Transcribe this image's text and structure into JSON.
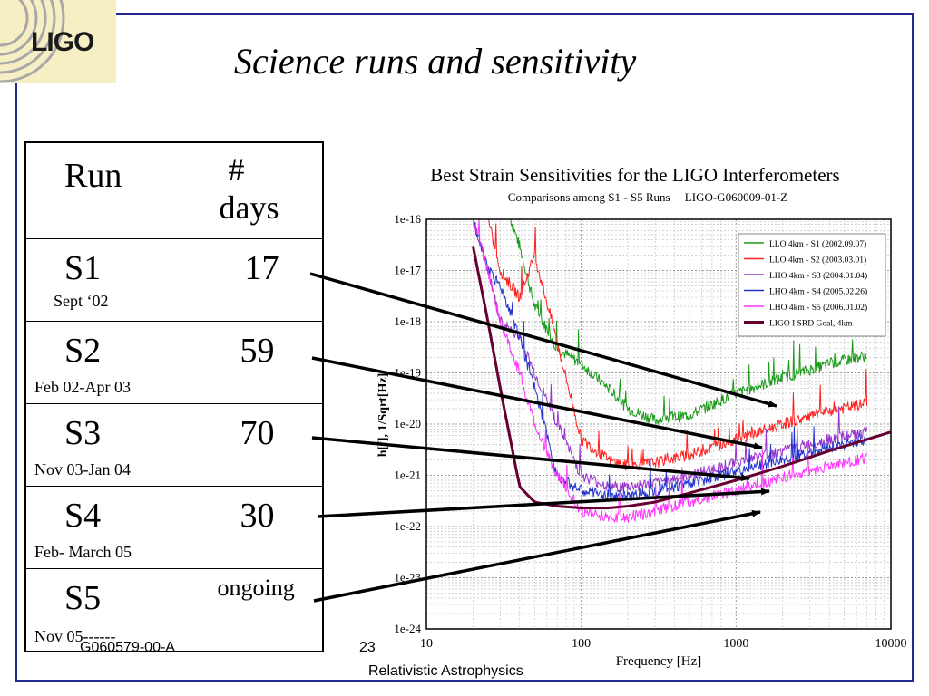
{
  "slide": {
    "logo_text": "LIGO",
    "title": "Science runs and sensitivity",
    "footer_left": "G060579-00-A",
    "page_number": "23",
    "footer_center": "Relativistic Astrophysics",
    "colors": {
      "frame": "#1f2a8c",
      "logo_bg": "#f7efc4"
    }
  },
  "table": {
    "header_run": "Run",
    "header_days_line1": "#",
    "header_days_line2": "days",
    "rows": [
      {
        "run": "S1",
        "dates": "Sept ‘02",
        "days": "17"
      },
      {
        "run": "S2",
        "dates": "Feb 02-Apr 03",
        "days": "59"
      },
      {
        "run": "S3",
        "dates": "Nov 03-Jan 04",
        "days": "70"
      },
      {
        "run": "S4",
        "dates": "Feb- March 05",
        "days": "30"
      },
      {
        "run": "S5",
        "dates": "Nov 05------",
        "days": "ongoing"
      }
    ]
  },
  "chart_data": {
    "type": "line",
    "title": "Best Strain Sensitivities for the LIGO Interferometers",
    "subtitle": "Comparisons among S1 - S5 Runs     LIGO-G060009-01-Z",
    "xlabel": "Frequency [Hz]",
    "ylabel": "h[f], 1/Sqrt[Hz]",
    "x_scale": "log",
    "y_scale": "log",
    "xlim": [
      10,
      10000
    ],
    "ylim": [
      1e-24,
      1e-16
    ],
    "x_ticks": [
      "10",
      "100",
      "1000",
      "10000"
    ],
    "y_ticks": [
      "1e-24",
      "1e-23",
      "1e-22",
      "1e-21",
      "1e-20",
      "1e-19",
      "1e-18",
      "1e-17",
      "1e-16"
    ],
    "grid": true,
    "legend_position": "top-right",
    "series": [
      {
        "name": "LLO 4km - S1 (2002.09.07)",
        "color": "#1a9a1a",
        "x": [
          35,
          40,
          50,
          70,
          100,
          150,
          200,
          300,
          500,
          1000,
          2000,
          4000,
          7000
        ],
        "y": [
          1e-16,
          3e-17,
          2e-18,
          3e-19,
          1.5e-19,
          5e-20,
          2e-20,
          1.2e-20,
          1.5e-20,
          4e-20,
          8e-20,
          1.5e-19,
          2.2e-19
        ]
      },
      {
        "name": "LLO 4km - S2 (2003.03.01)",
        "color": "#ff2020",
        "x": [
          25,
          30,
          40,
          50,
          70,
          100,
          150,
          200,
          300,
          500,
          1000,
          2000,
          4000,
          7000
        ],
        "y": [
          1e-16,
          1e-17,
          3e-18,
          2e-17,
          4e-19,
          5e-21,
          2e-21,
          1.5e-21,
          1.8e-21,
          2.5e-21,
          5e-21,
          1e-20,
          1.8e-20,
          2.5e-20
        ]
      },
      {
        "name": "LHO 4km - S3 (2004.01.04)",
        "color": "#9933cc",
        "x": [
          20,
          25,
          30,
          40,
          50,
          70,
          100,
          150,
          200,
          300,
          500,
          1000,
          2000,
          4000,
          7000
        ],
        "y": [
          1e-16,
          1e-17,
          1e-18,
          5e-19,
          1e-19,
          1e-20,
          1e-21,
          6e-22,
          6e-22,
          7e-22,
          1e-21,
          1.8e-21,
          3e-21,
          5e-21,
          7e-21
        ]
      },
      {
        "name": "LHO 4km - S4 (2005.02.26)",
        "color": "#2233cc",
        "x": [
          20,
          25,
          30,
          40,
          50,
          70,
          100,
          150,
          200,
          300,
          500,
          1000,
          2000,
          4000,
          7000
        ],
        "y": [
          1e-16,
          1e-17,
          5e-18,
          5e-19,
          5e-20,
          1e-21,
          5e-22,
          4e-22,
          4e-22,
          5e-22,
          7e-22,
          1.2e-21,
          2e-21,
          3.5e-21,
          5e-21
        ]
      },
      {
        "name": "LHO 4km - S5 (2006.01.02)",
        "color": "#ff33ff",
        "x": [
          20,
          25,
          30,
          40,
          50,
          70,
          100,
          150,
          200,
          300,
          500,
          1000,
          2000,
          4000,
          7000
        ],
        "y": [
          1e-16,
          1e-17,
          1e-18,
          1e-19,
          1e-20,
          1e-21,
          2e-22,
          1.5e-22,
          1.5e-22,
          2e-22,
          3e-22,
          5e-22,
          9e-22,
          1.5e-21,
          2.2e-21
        ]
      },
      {
        "name": "LIGO I SRD Goal, 4km",
        "color": "#660033",
        "x": [
          20,
          25,
          30,
          40,
          50,
          70,
          100,
          150,
          200,
          300,
          500,
          1000,
          2000,
          4000,
          10000
        ],
        "y": [
          3e-17,
          1e-18,
          5e-20,
          6e-22,
          3e-22,
          2.5e-22,
          2.3e-22,
          2.3e-22,
          2.5e-22,
          3e-22,
          4.5e-22,
          8e-22,
          1.5e-21,
          3e-21,
          7e-21
        ]
      }
    ]
  }
}
